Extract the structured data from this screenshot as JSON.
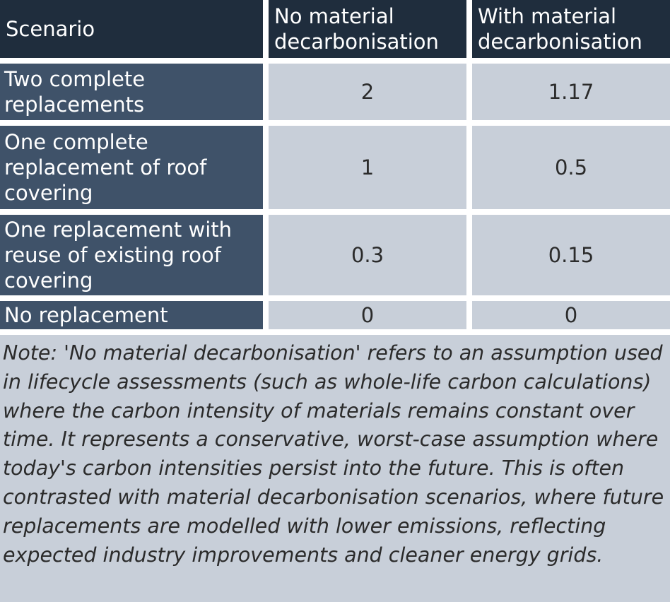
{
  "table": {
    "header": [
      "Scenario",
      "No material decarbonisation",
      "With material decarbonisation"
    ],
    "rows": [
      [
        "Two complete replacements",
        2,
        1.17
      ],
      [
        "One complete replacement of roof covering",
        1,
        0.5
      ],
      [
        "One replacement with reuse of existing roof covering",
        0.3,
        0.15
      ],
      [
        "No replacement",
        0,
        0
      ]
    ]
  },
  "note": "Note: 'No material decarbonisation' refers to an assumption used in lifecycle assessments (such as whole-life carbon calculations) where the carbon intensity of materials remains constant over time. It represents a conservative, worst-case assumption where today's carbon intensities persist into the future. This is often contrasted with material decarbonisation scenarios, where future replacements are modelled with lower emissions, reflecting expected industry improvements and cleaner energy grids."
}
